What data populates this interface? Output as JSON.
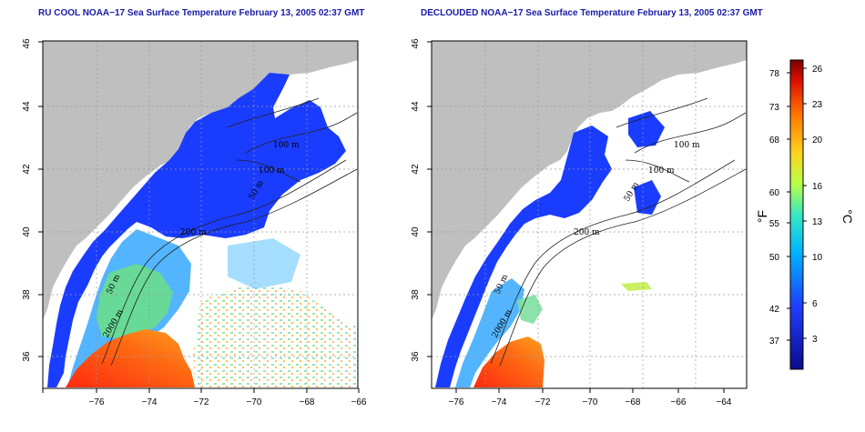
{
  "panels": [
    {
      "title": "RU COOL NOAA−17 Sea Surface Temperature February 13, 2005 02:37 GMT",
      "contour_labels": [
        "100 m",
        "100 m",
        "50 m",
        "200 m",
        "50 m",
        "2000 m"
      ]
    },
    {
      "title": "DECLOUDED NOAA−17 Sea Surface Temperature February 13, 2005 02:37 GMT",
      "contour_labels": [
        "100 m",
        "100 m",
        "50 m",
        "200 m",
        "50 m",
        "2000 m"
      ]
    }
  ],
  "axes": {
    "lon_ticks": [
      "−76",
      "−74",
      "−72",
      "−70",
      "−68",
      "−66",
      "−64"
    ],
    "lat_ticks": [
      "36",
      "38",
      "40",
      "42",
      "44",
      "46"
    ]
  },
  "colorbar": {
    "unit_f": "°F",
    "unit_c": "°C",
    "f_ticks": [
      "78",
      "73",
      "68",
      "60",
      "55",
      "50",
      "42",
      "37"
    ],
    "c_ticks": [
      "26",
      "23",
      "20",
      "16",
      "13",
      "10",
      "6",
      "3"
    ],
    "colors": [
      "#0a0a8c",
      "#1e3cff",
      "#00c8ff",
      "#7fff80",
      "#ffd21e",
      "#ff6a00",
      "#c80000",
      "#7a0000"
    ]
  },
  "colors": {
    "land": "#bfbfbf",
    "ocean_cold": "#1a3cff",
    "ocean_warm": "#ff3b1a",
    "grid": "#9a9a9a"
  }
}
